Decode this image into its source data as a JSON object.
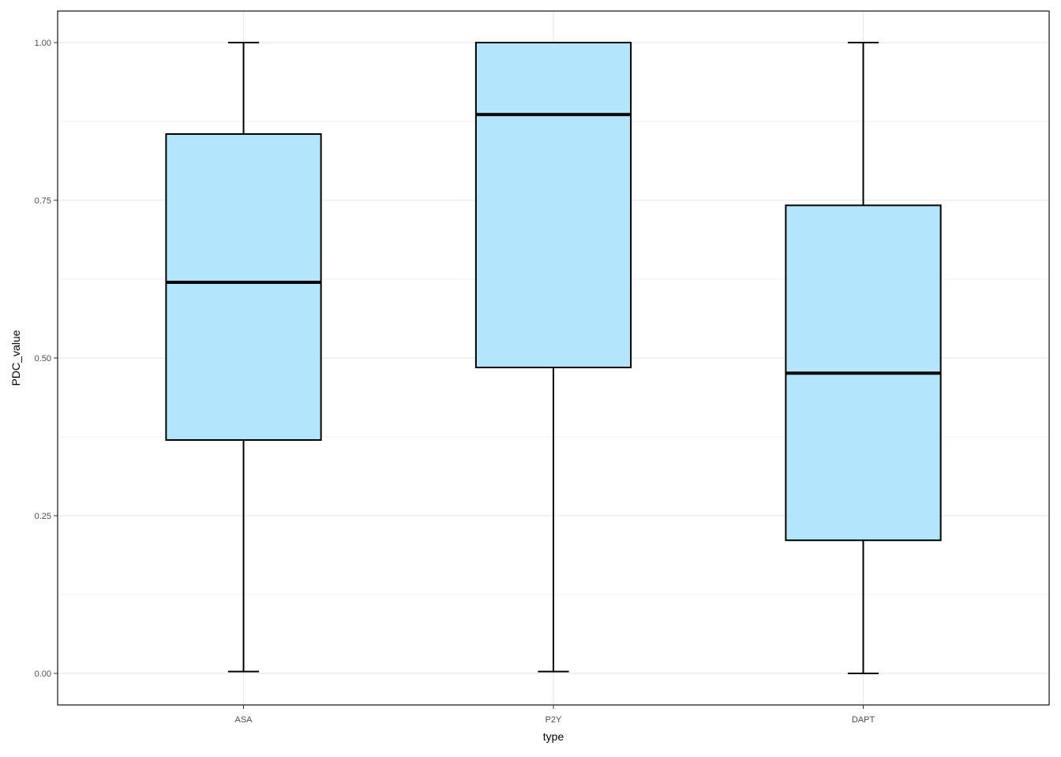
{
  "chart_data": {
    "type": "boxplot",
    "title": "",
    "xlabel": "type",
    "ylabel": "PDC_value",
    "categories": [
      "ASA",
      "P2Y",
      "DAPT"
    ],
    "boxes": [
      {
        "category": "ASA",
        "whisker_low": 0.003,
        "q1": 0.37,
        "median": 0.62,
        "q3": 0.855,
        "whisker_high": 1.0
      },
      {
        "category": "P2Y",
        "whisker_low": 0.003,
        "q1": 0.485,
        "median": 0.886,
        "q3": 1.0,
        "whisker_high": 1.0
      },
      {
        "category": "DAPT",
        "whisker_low": 0.0,
        "q1": 0.211,
        "median": 0.476,
        "q3": 0.742,
        "whisker_high": 1.0
      }
    ],
    "ylim": [
      -0.05,
      1.05
    ],
    "yticks": [
      0.0,
      0.25,
      0.5,
      0.75,
      1.0
    ],
    "ytick_labels": [
      "0.00",
      "0.25",
      "0.50",
      "0.75",
      "1.00"
    ],
    "grid": true,
    "legend": "none",
    "colors": {
      "box_fill": "#b3e6fc",
      "box_stroke": "#000000",
      "grid_major": "#ebebeb",
      "grid_minor": "#f2f2f2",
      "panel_border": "#333333"
    }
  }
}
